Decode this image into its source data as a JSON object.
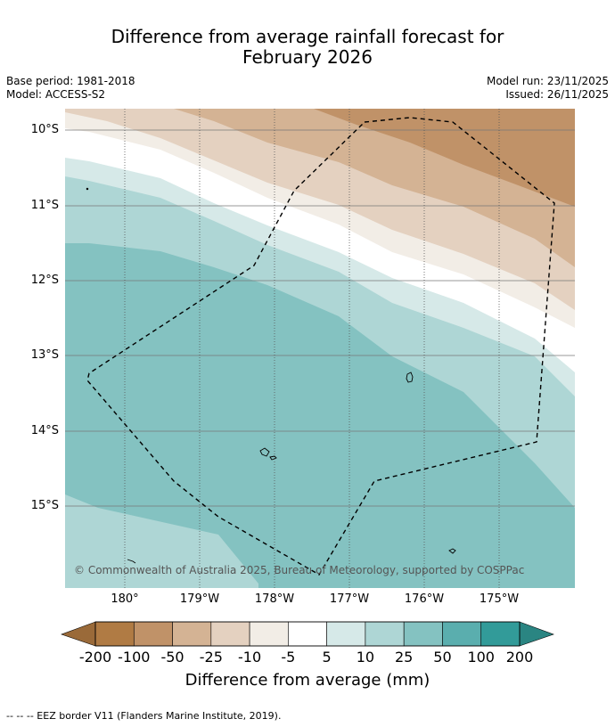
{
  "title": {
    "line1": "Difference from average rainfall forecast for",
    "line2": "February 2026"
  },
  "meta": {
    "base_period": "Base period: 1981-2018",
    "model": "Model: ACCESS-S2",
    "model_run": "Model run: 23/11/2025",
    "issued": "Issued: 26/11/2025"
  },
  "map": {
    "latitude_labels": [
      "10°S",
      "11°S",
      "12°S",
      "13°S",
      "14°S",
      "15°S"
    ],
    "longitude_labels": [
      "180°",
      "179°W",
      "178°W",
      "177°W",
      "176°W",
      "175°W"
    ],
    "copyright": "© Commonwealth of Australia 2025, Bureau of Meteorology, supported by COSPPac",
    "colors": {
      "brown_dark": "#b07b44",
      "brown_mid": "#c09268",
      "brown_light": "#d4b394",
      "tan": "#e4d1c0",
      "cream": "#f2ede6",
      "white": "#ffffff",
      "teal_lightest": "#d6e9e8",
      "teal_light": "#aed6d5",
      "teal_mid": "#84c2c1",
      "teal_dark": "#5aaeae",
      "teal_darker": "#329b99"
    }
  },
  "colorbar": {
    "ticks": [
      "-200",
      "-100",
      "-50",
      "-25",
      "-10",
      "-5",
      "5",
      "10",
      "25",
      "50",
      "100",
      "200"
    ],
    "colors": [
      "#b07b44",
      "#c09268",
      "#d4b394",
      "#e4d1c0",
      "#f2ede6",
      "#ffffff",
      "#d6e9e8",
      "#aed6d5",
      "#84c2c1",
      "#5aaeae",
      "#329b99"
    ],
    "under_color": "#9a6a39",
    "over_color": "#2a8582",
    "label": "Difference from average (mm)"
  },
  "footnote": "-- -- -- EEZ border V11 (Flanders Marine Institute, 2019)."
}
